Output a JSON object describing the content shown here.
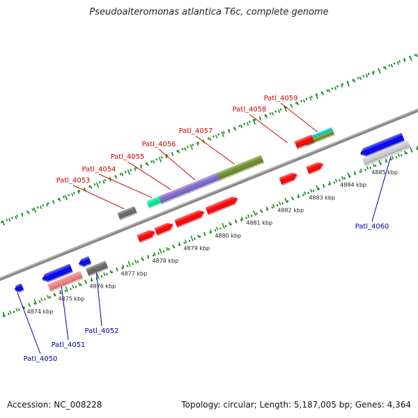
{
  "title": "Pseudoalteromonas atlantica T6c, complete genome",
  "footer": {
    "accession": "Accession: NC_008228",
    "stats": "Topology: circular; Length: 5,187,005 bp; Genes: 4,364"
  },
  "colors": {
    "forward_label": "#cc0000",
    "reverse_label": "#000099",
    "backbone": "#888888",
    "tick": "#1e8c1e"
  },
  "scale_labels": [
    "4874 kbp",
    "4875 kbp",
    "4876 kbp",
    "4877 kbp",
    "4878 kbp",
    "4879 kbp",
    "4880 kbp",
    "4881 kbp",
    "4882 kbp",
    "4883 kbp",
    "4884 kbp",
    "4885 kbp"
  ],
  "gene_labels": [
    {
      "text": "Patl_4050",
      "strand": "reverse"
    },
    {
      "text": "Patl_4051",
      "strand": "reverse"
    },
    {
      "text": "Patl_4052",
      "strand": "reverse"
    },
    {
      "text": "Patl_4053",
      "strand": "forward"
    },
    {
      "text": "Patl_4054",
      "strand": "forward"
    },
    {
      "text": "Patl_4055",
      "strand": "forward"
    },
    {
      "text": "Patl_4056",
      "strand": "forward"
    },
    {
      "text": "Patl_4057",
      "strand": "forward"
    },
    {
      "text": "Patl_4058",
      "strand": "forward"
    },
    {
      "text": "Patl_4059",
      "strand": "forward"
    },
    {
      "text": "Patl_4060",
      "strand": "reverse"
    }
  ],
  "features": [
    {
      "color": "#0000ee"
    },
    {
      "color": "#0000ee"
    },
    {
      "color": "#0000ee"
    },
    {
      "color": "#f08080"
    },
    {
      "color": "#666666"
    },
    {
      "color": "#ff0000"
    },
    {
      "color": "#ff0000"
    },
    {
      "color": "#ff0000"
    },
    {
      "color": "#ff0000"
    },
    {
      "color": "#ff0000"
    },
    {
      "color": "#ff0000"
    },
    {
      "color": "#666666"
    },
    {
      "color": "#00ee99"
    },
    {
      "color": "#7b68cc"
    },
    {
      "color": "#7b68cc"
    },
    {
      "color": "#6b8e23"
    },
    {
      "color": "#00cccc"
    },
    {
      "color": "#6b8e23"
    },
    {
      "color": "#ff0000"
    },
    {
      "color": "#0000ee"
    },
    {
      "color": "#cccccc"
    },
    {
      "color": "#0000ee"
    },
    {
      "color": "#6a5acd"
    }
  ]
}
